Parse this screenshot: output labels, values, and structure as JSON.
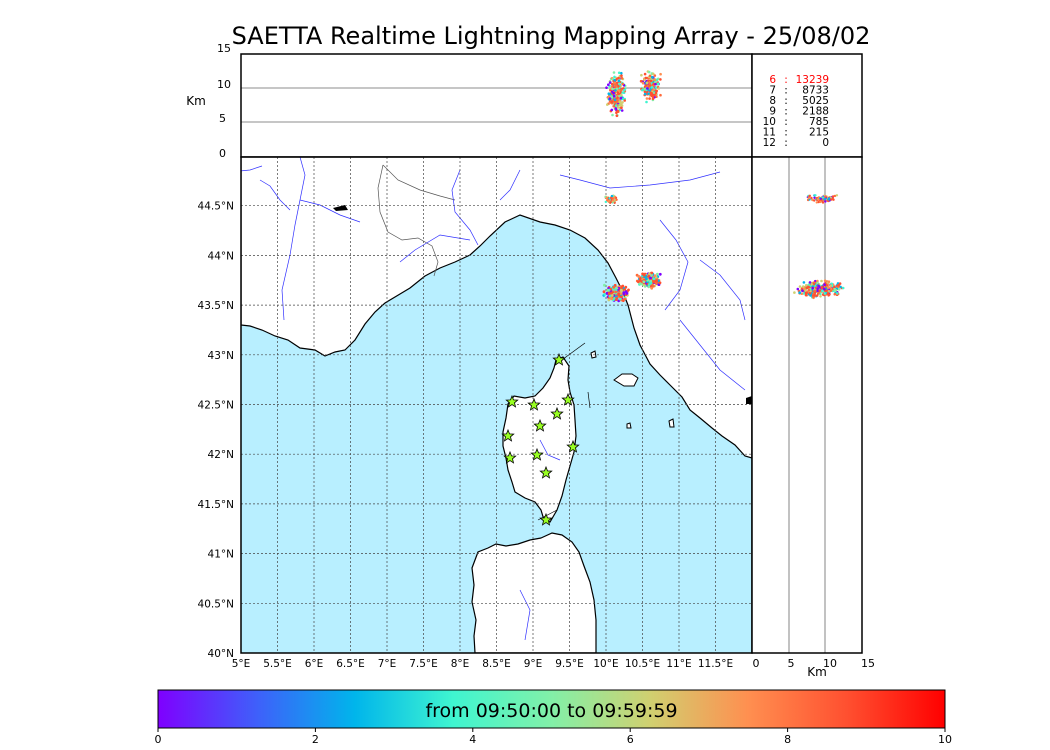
{
  "title": "SAETTA Realtime Lightning Mapping Array - 25/08/02",
  "top_panel": {
    "ylabel": "Km",
    "yticks": [
      "15",
      "10",
      "5",
      "0"
    ]
  },
  "stats": [
    {
      "stations": "6",
      "count": "13239",
      "highlight": true
    },
    {
      "stations": "7",
      "count": "8733",
      "highlight": false
    },
    {
      "stations": "8",
      "count": "5025",
      "highlight": false
    },
    {
      "stations": "9",
      "count": "2188",
      "highlight": false
    },
    {
      "stations": "10",
      "count": "785",
      "highlight": false
    },
    {
      "stations": "11",
      "count": "215",
      "highlight": false
    },
    {
      "stations": "12",
      "count": "0",
      "highlight": false
    }
  ],
  "map": {
    "lat_ticks": [
      "44.5°N",
      "44°N",
      "43.5°N",
      "43°N",
      "42.5°N",
      "42°N",
      "41.5°N",
      "41°N",
      "40.5°N",
      "40°N"
    ],
    "lon_ticks": [
      "5°E",
      "5.5°E",
      "6°E",
      "6.5°E",
      "7°E",
      "7.5°E",
      "8°E",
      "8.5°E",
      "9°E",
      "9.5°E",
      "10°E",
      "10.5°E",
      "11°E",
      "11.5°E"
    ],
    "sea_color": "#b8efff",
    "land_color": "#ffffff",
    "river_color": "#3030ff",
    "station_color": "#99ff22",
    "station_icon": "star-icon"
  },
  "side_panel": {
    "xlabel": "Km",
    "xticks": [
      "0",
      "5",
      "10",
      "15"
    ]
  },
  "colorbar": {
    "label": "from 09:50:00 to 09:59:59",
    "ticks": [
      "0",
      "2",
      "4",
      "6",
      "8",
      "10"
    ],
    "colors": [
      "#7f00ff",
      "#3f5ffa",
      "#00b5eb",
      "#3ff5d0",
      "#82f0a8",
      "#d0d070",
      "#ff8f50",
      "#ff5030",
      "#ff0000"
    ]
  }
}
